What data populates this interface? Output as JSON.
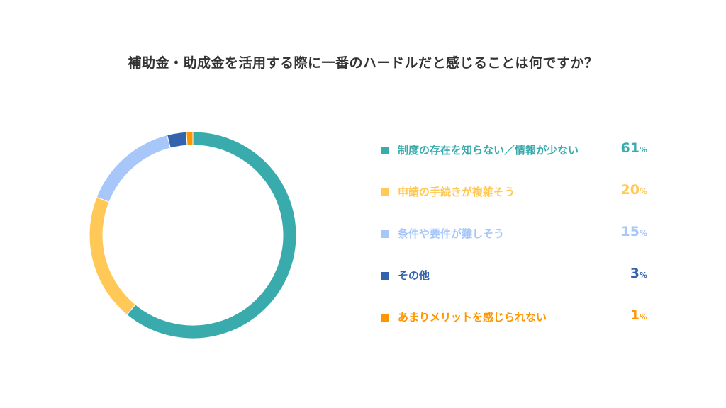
{
  "chart_data": {
    "type": "pie",
    "title": "補助金・助成金を活用する際に一番のハードルだと感じることは何ですか？",
    "percent_sign": "%",
    "categories": [
      "制度の存在を知らない／情報が少ない",
      "申請の手続きが複雑そう",
      "条件や要件が難しそう",
      "その他",
      "あまりメリットを感じられない"
    ],
    "values": [
      61,
      20,
      15,
      3,
      1
    ],
    "colors": [
      "#3AABAD",
      "#FFC857",
      "#A7C7FB",
      "#3463AE",
      "#FF9500"
    ],
    "legend_position": "right",
    "donut": true
  }
}
